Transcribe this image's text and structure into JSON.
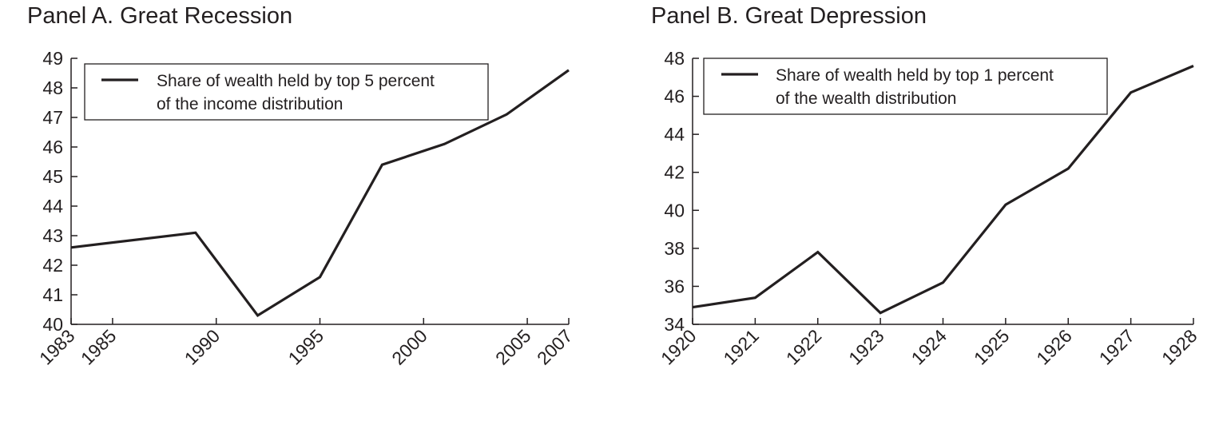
{
  "chart_data": [
    {
      "type": "line",
      "title": "Panel A. Great Recession",
      "xlabel": "",
      "ylabel": "",
      "xlim": [
        1983,
        2007
      ],
      "ylim": [
        40,
        49
      ],
      "x_ticks": [
        "1983",
        "1985",
        "1990",
        "1995",
        "2000",
        "2005",
        "2007"
      ],
      "y_ticks": [
        "40",
        "41",
        "42",
        "43",
        "44",
        "45",
        "46",
        "47",
        "48",
        "49"
      ],
      "grid": false,
      "legend_position": "top-left",
      "legend_lines": [
        "Share of wealth held by top 5 percent",
        "of the income distribution"
      ],
      "series": [
        {
          "name": "Share of wealth held by top 5 percent of the income distribution",
          "x": [
            1983,
            1989,
            1992,
            1995,
            1998,
            2001,
            2004,
            2007
          ],
          "y": [
            42.6,
            43.1,
            40.3,
            41.6,
            45.4,
            46.1,
            47.1,
            48.6
          ]
        }
      ]
    },
    {
      "type": "line",
      "title": "Panel B. Great Depression",
      "xlabel": "",
      "ylabel": "",
      "xlim": [
        1920,
        1928
      ],
      "ylim": [
        34,
        48
      ],
      "x_ticks": [
        "1920",
        "1921",
        "1922",
        "1923",
        "1924",
        "1925",
        "1926",
        "1927",
        "1928"
      ],
      "y_ticks": [
        "34",
        "36",
        "38",
        "40",
        "42",
        "44",
        "46",
        "48"
      ],
      "grid": false,
      "legend_position": "top-left",
      "legend_lines": [
        "Share of wealth held by top 1 percent",
        "of the wealth distribution"
      ],
      "series": [
        {
          "name": "Share of wealth held by top 1 percent of the wealth distribution",
          "x": [
            1920,
            1921,
            1922,
            1923,
            1924,
            1925,
            1926,
            1927,
            1928
          ],
          "y": [
            34.9,
            35.4,
            37.8,
            34.6,
            36.2,
            40.3,
            42.2,
            46.2,
            47.6
          ]
        }
      ]
    }
  ]
}
